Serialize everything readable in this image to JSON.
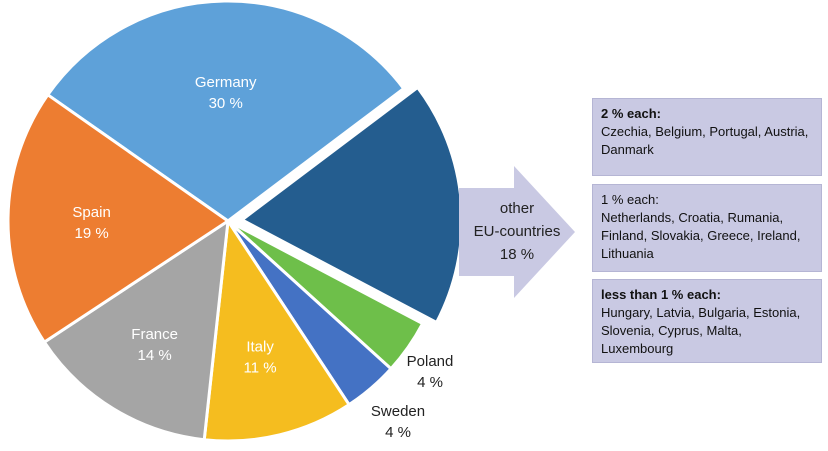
{
  "chart_data": {
    "type": "pie",
    "slices": [
      {
        "name": "Germany",
        "label": "30 %",
        "value": 30,
        "color": "#5ea1d9",
        "label_color": "#ffffff",
        "exploded": false
      },
      {
        "name": "other EU-countries",
        "label": "18 %",
        "value": 18,
        "color": "#245d8f",
        "label_color": "#222222",
        "exploded": true
      },
      {
        "name": "Poland",
        "label": "4 %",
        "value": 4,
        "color": "#6ebf4a",
        "label_color": "#222222",
        "exploded": false
      },
      {
        "name": "Sweden",
        "label": "4 %",
        "value": 4,
        "color": "#4472c4",
        "label_color": "#222222",
        "exploded": false
      },
      {
        "name": "Italy",
        "label": "11 %",
        "value": 11,
        "color": "#f5bd1f",
        "label_color": "#ffffff",
        "exploded": false
      },
      {
        "name": "France",
        "label": "14 %",
        "value": 14,
        "color": "#a5a5a5",
        "label_color": "#ffffff",
        "exploded": false
      },
      {
        "name": "Spain",
        "label": "19 %",
        "value": 19,
        "color": "#ed7d31",
        "label_color": "#ffffff",
        "exploded": false
      }
    ],
    "arrow_label": [
      "other",
      "EU-countries",
      "18 %"
    ],
    "arrow_color": "#c9c9e3",
    "breakdown": [
      {
        "heading": "2 % each:",
        "heading_bold": true,
        "countries": "Czechia, Belgium, Portugal, Austria, Danmark"
      },
      {
        "heading": "1 % each:",
        "heading_bold": false,
        "countries": "Netherlands, Croatia, Rumania, Finland, Slovakia, Greece, Ireland, Lithuania"
      },
      {
        "heading": "less than 1 % each:",
        "heading_bold": true,
        "countries": "Hungary, Latvia, Bulgaria, Estonia, Slovenia, Cyprus, Malta, Luxembourg"
      }
    ]
  }
}
